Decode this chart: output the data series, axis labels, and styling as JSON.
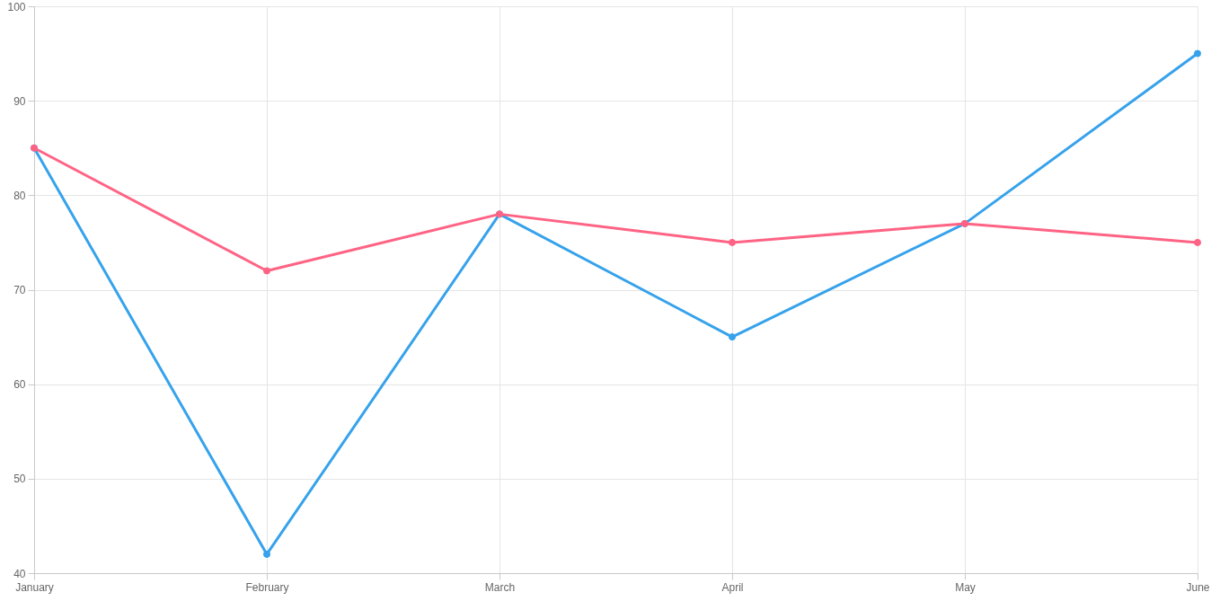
{
  "chart_data": {
    "type": "line",
    "categories": [
      "January",
      "February",
      "March",
      "April",
      "May",
      "June"
    ],
    "series": [
      {
        "color": "#36a2eb",
        "values": [
          85,
          42,
          78,
          65,
          77,
          95
        ]
      },
      {
        "color": "#ff6384",
        "values": [
          85,
          72,
          78,
          75,
          77,
          75
        ]
      }
    ],
    "ylim": [
      40,
      100
    ],
    "yticks": [
      40,
      50,
      60,
      70,
      80,
      90,
      100
    ],
    "grid": true,
    "marker": "circle",
    "line_style": "solid"
  }
}
